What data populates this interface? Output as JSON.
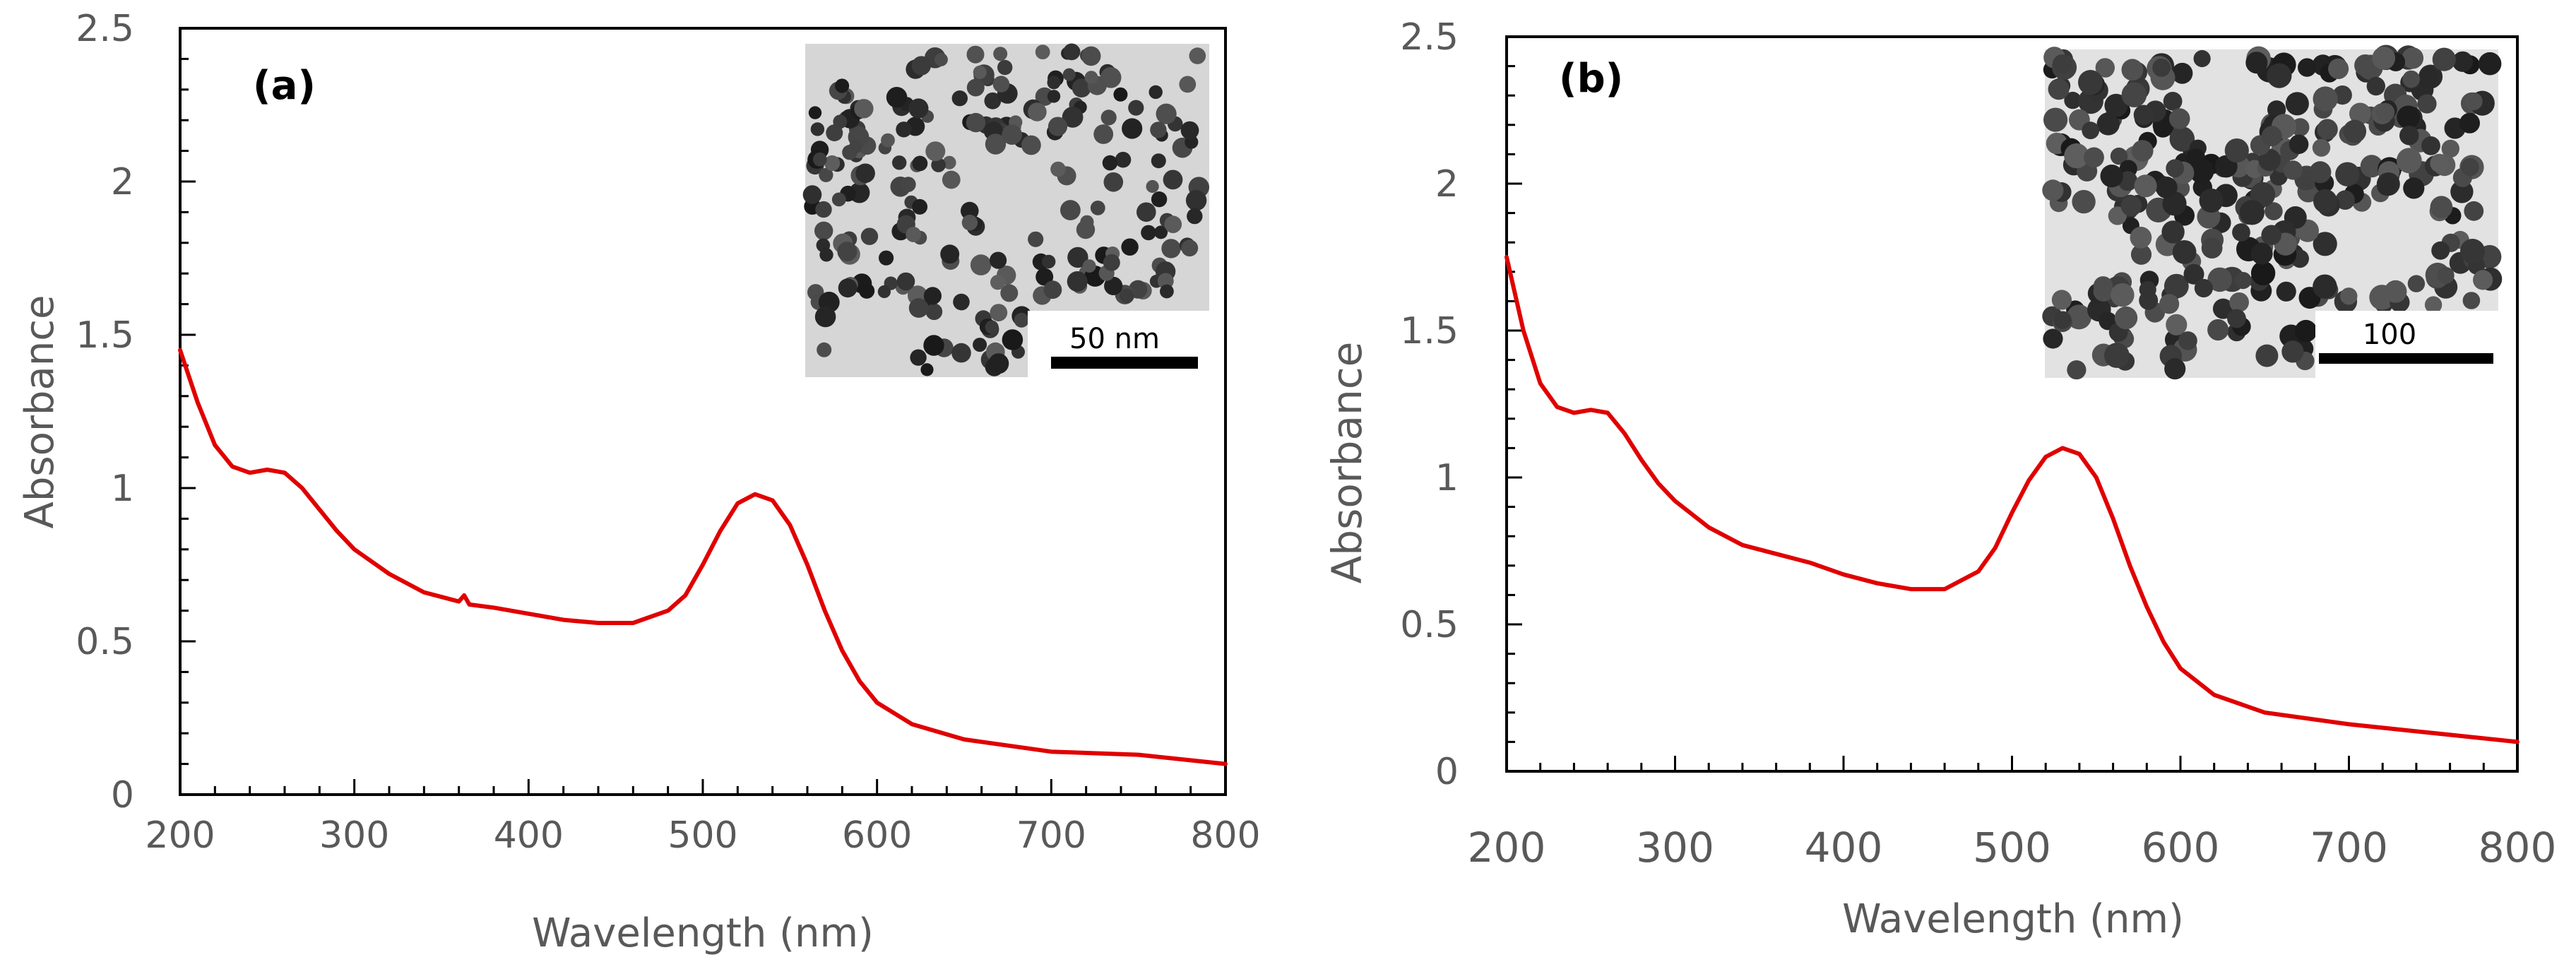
{
  "colors": {
    "curve": "#e00000",
    "axis": "#000000",
    "text": "#595959",
    "particle": "#2a2a2a"
  },
  "chart_data": [
    {
      "id": "a",
      "type": "line",
      "panel_label": "(a)",
      "xlabel": "Wavelength (nm)",
      "ylabel": "Absorbance",
      "xlim": [
        200,
        800
      ],
      "ylim": [
        0,
        2.5
      ],
      "x_ticks": [
        "200",
        "300",
        "400",
        "500",
        "600",
        "700",
        "800"
      ],
      "y_ticks": [
        "0",
        "0.5",
        "1",
        "1.5",
        "2",
        "2.5"
      ],
      "inset_scale_label": "50 nm",
      "series": [
        {
          "name": "Absorbance",
          "x": [
            200,
            210,
            220,
            230,
            240,
            250,
            260,
            270,
            280,
            290,
            300,
            320,
            340,
            360,
            363,
            366,
            380,
            400,
            420,
            440,
            460,
            480,
            490,
            500,
            510,
            520,
            530,
            540,
            550,
            560,
            570,
            580,
            590,
            600,
            620,
            650,
            700,
            750,
            800
          ],
          "y": [
            1.45,
            1.28,
            1.14,
            1.07,
            1.05,
            1.06,
            1.05,
            1.0,
            0.93,
            0.86,
            0.8,
            0.72,
            0.66,
            0.63,
            0.65,
            0.62,
            0.61,
            0.59,
            0.57,
            0.56,
            0.56,
            0.6,
            0.65,
            0.75,
            0.86,
            0.95,
            0.98,
            0.96,
            0.88,
            0.75,
            0.6,
            0.47,
            0.37,
            0.3,
            0.23,
            0.18,
            0.14,
            0.13,
            0.1
          ]
        }
      ]
    },
    {
      "id": "b",
      "type": "line",
      "panel_label": "(b)",
      "xlabel": "Wavelength (nm)",
      "ylabel": "Absorbance",
      "xlim": [
        200,
        800
      ],
      "ylim": [
        0,
        2.5
      ],
      "x_ticks": [
        "200",
        "300",
        "400",
        "500",
        "600",
        "700",
        "800"
      ],
      "y_ticks": [
        "0",
        "0.5",
        "1",
        "1.5",
        "2",
        "2.5"
      ],
      "inset_scale_label": "100",
      "series": [
        {
          "name": "Absorbance",
          "x": [
            200,
            210,
            220,
            230,
            240,
            250,
            260,
            270,
            280,
            290,
            300,
            320,
            340,
            360,
            380,
            400,
            420,
            440,
            460,
            480,
            490,
            500,
            510,
            520,
            530,
            540,
            550,
            560,
            570,
            580,
            590,
            600,
            620,
            650,
            700,
            750,
            800
          ],
          "y": [
            1.75,
            1.5,
            1.32,
            1.24,
            1.22,
            1.23,
            1.22,
            1.15,
            1.06,
            0.98,
            0.92,
            0.83,
            0.77,
            0.74,
            0.71,
            0.67,
            0.64,
            0.62,
            0.62,
            0.68,
            0.76,
            0.88,
            0.99,
            1.07,
            1.1,
            1.08,
            1.0,
            0.86,
            0.7,
            0.56,
            0.44,
            0.35,
            0.26,
            0.2,
            0.16,
            0.13,
            0.1
          ]
        }
      ]
    }
  ]
}
